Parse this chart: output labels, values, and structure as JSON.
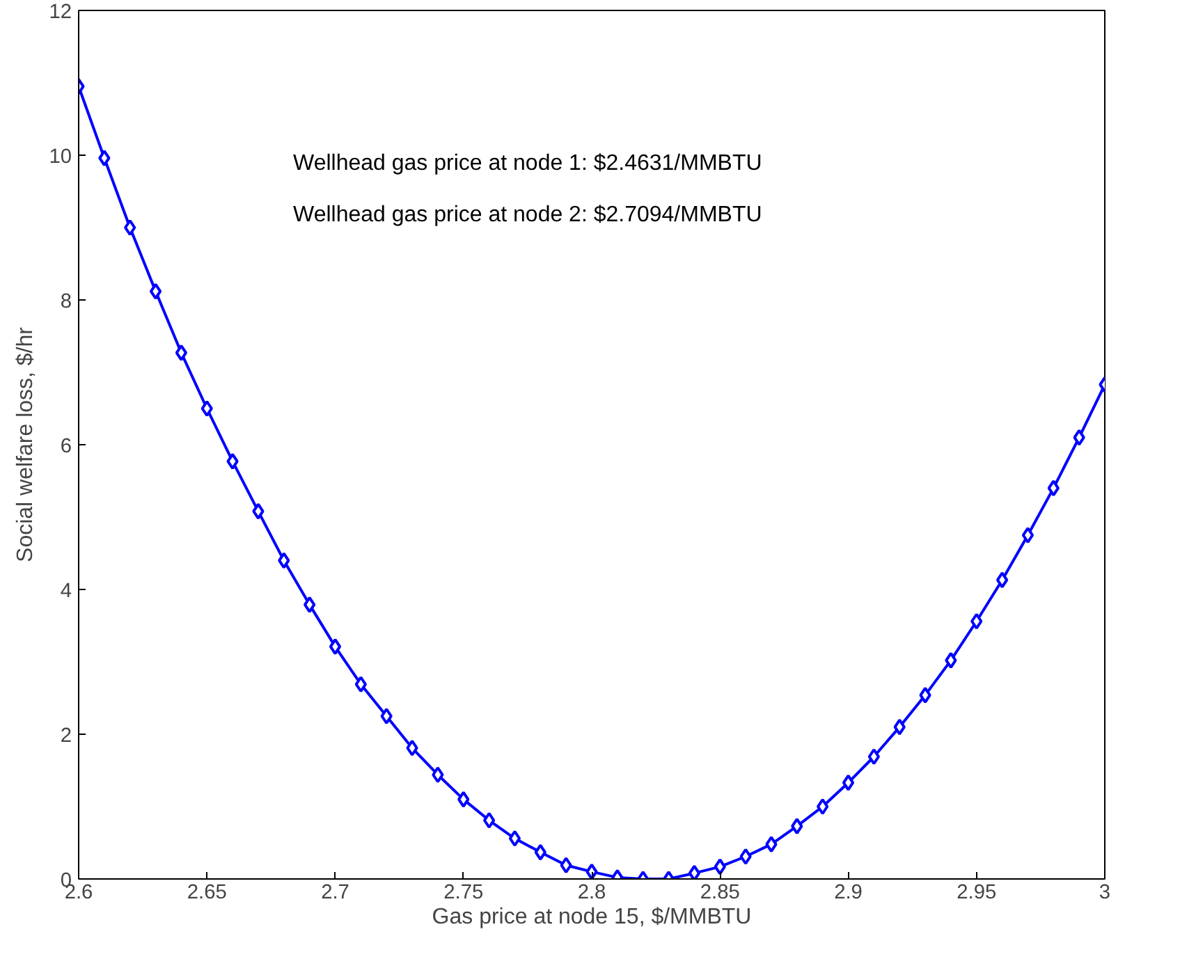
{
  "chart_data": {
    "type": "line",
    "xlabel": "Gas price at node 15, $/MMBTU",
    "ylabel": "Social welfare loss, $/hr",
    "annotations": [
      "Wellhead gas price at node 1: $2.4631/MMBTU",
      "Wellhead gas price at node 2: $2.7094/MMBTU"
    ],
    "x": [
      2.6,
      2.61,
      2.62,
      2.63,
      2.64,
      2.65,
      2.66,
      2.67,
      2.68,
      2.69,
      2.7,
      2.71,
      2.72,
      2.73,
      2.74,
      2.75,
      2.76,
      2.77,
      2.78,
      2.79,
      2.8,
      2.81,
      2.82,
      2.83,
      2.84,
      2.85,
      2.86,
      2.87,
      2.88,
      2.89,
      2.9,
      2.91,
      2.92,
      2.93,
      2.94,
      2.95,
      2.96,
      2.97,
      2.98,
      2.99,
      3.0
    ],
    "series": [
      {
        "color": "#0000ff",
        "values": [
          10.95,
          9.96,
          9.0,
          8.12,
          7.27,
          6.5,
          5.77,
          5.08,
          4.4,
          3.79,
          3.21,
          2.69,
          2.25,
          1.81,
          1.44,
          1.1,
          0.81,
          0.56,
          0.37,
          0.19,
          0.1,
          0.02,
          0.0,
          0.0,
          0.08,
          0.17,
          0.31,
          0.48,
          0.73,
          1.0,
          1.33,
          1.69,
          2.1,
          2.54,
          3.02,
          3.56,
          4.13,
          4.75,
          5.4,
          6.1,
          6.83
        ]
      }
    ],
    "xlim": [
      2.6,
      3.0
    ],
    "ylim": [
      0,
      12
    ],
    "xticks": [
      2.6,
      2.65,
      2.7,
      2.75,
      2.8,
      2.85,
      2.9,
      2.95,
      3
    ],
    "yticks": [
      0,
      2,
      4,
      6,
      8,
      10,
      12
    ],
    "grid": false,
    "marker": "diamond",
    "line_style": "solid"
  }
}
